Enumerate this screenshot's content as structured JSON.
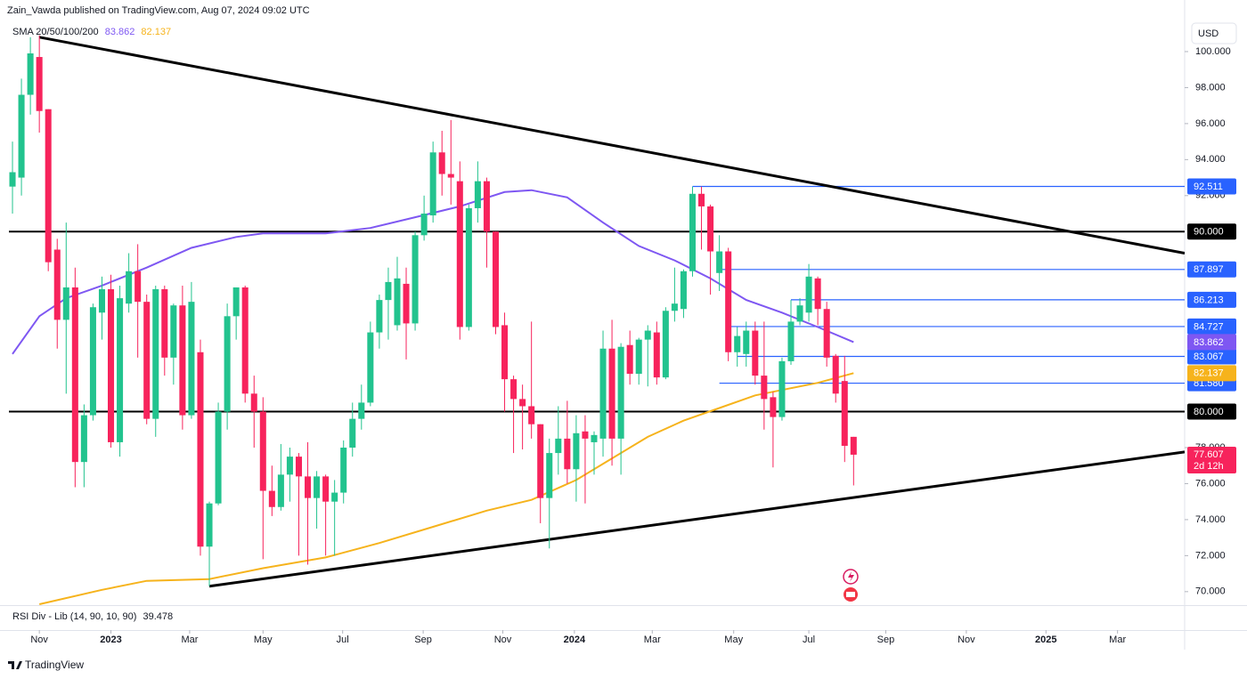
{
  "header": "Zain_Vawda published on TradingView.com, Aug 07, 2024 09:02 UTC",
  "currency": "USD",
  "footer": "TradingView",
  "indicator_legend": "SMA 20/50/100/200",
  "rsi_legend": {
    "name": "RSI Div - Lib (14, 90, 10, 90)",
    "value": 39.478
  },
  "chart_data": {
    "type": "candlestick",
    "up_color": "#22c38e",
    "down_color": "#f7235c",
    "open": [
      92.5,
      93,
      97.6,
      99.7,
      96.8,
      89,
      85.1,
      86.9,
      77.2,
      79.8,
      85.5,
      86.8,
      78.3,
      86,
      87.8,
      86.1,
      79.6,
      86.8,
      83,
      85.9,
      79.8,
      83.3,
      72.5,
      74.9,
      80,
      85.3,
      86.9,
      81,
      80,
      75.6,
      74.7,
      76.5,
      77.5,
      76.4,
      75.2,
      76.4,
      75,
      75.5,
      78,
      79.6,
      80.5,
      84.4,
      86.2,
      84.8,
      87.1,
      84.9,
      89.8,
      90.9,
      94.4,
      93.2,
      92.8,
      84.7,
      91.3,
      92.8,
      90,
      84.8,
      81.8,
      80.7,
      80.3,
      79.3,
      75.2,
      77.7,
      78.5,
      76.8,
      78.9,
      78.3,
      78.5,
      83.5,
      78.5,
      83.7,
      82.1,
      84,
      84.4,
      81.9,
      85.6,
      85.7,
      87.8,
      92.1,
      91.4,
      87.7,
      88.9,
      83.3,
      83.2,
      84.5,
      82,
      80.8,
      79.7,
      82.8,
      85,
      85.5,
      87.4,
      85.7,
      83.1,
      81.7,
      78.6
    ],
    "high": [
      95,
      98.5,
      100.8,
      100.9,
      96.8,
      89.6,
      90.5,
      88,
      80.4,
      86,
      87.5,
      87.6,
      87,
      88.8,
      89.3,
      86.5,
      87,
      87,
      86,
      87,
      87.2,
      84,
      75,
      80.5,
      86,
      86.9,
      87,
      82,
      80.8,
      77,
      78.2,
      78,
      77.7,
      78.3,
      76.7,
      76.5,
      76.2,
      78.4,
      80.5,
      81.5,
      85,
      86.5,
      88,
      88.6,
      88,
      90,
      92,
      95,
      95.6,
      96.2,
      93.9,
      91.5,
      93.9,
      93,
      90,
      85.5,
      82,
      81.5,
      85,
      79.3,
      78.5,
      80.3,
      80.6,
      79.8,
      79.8,
      78.9,
      84.5,
      85.1,
      83.8,
      84.5,
      84.1,
      84.8,
      85,
      85.8,
      88,
      87.9,
      92.5,
      92.5,
      91.5,
      89.8,
      89.1,
      84.7,
      85,
      85,
      85,
      81.1,
      83,
      86.2,
      86.3,
      88.2,
      87.5,
      86.1,
      83.2,
      83.1,
      78.6
    ],
    "low": [
      91,
      92,
      96.5,
      95.5,
      87.8,
      83.5,
      81,
      75.8,
      75.8,
      79.5,
      84,
      78,
      77.5,
      85.5,
      83,
      79.3,
      78.6,
      82,
      81.5,
      79,
      79.6,
      72,
      70.3,
      74.8,
      79,
      84,
      80.5,
      78,
      71.8,
      74.2,
      74.5,
      75,
      72,
      71.5,
      73.5,
      72,
      72,
      74.9,
      77.5,
      79,
      80.3,
      83.5,
      84,
      84.5,
      82.9,
      84.5,
      89.5,
      90.5,
      92,
      91.5,
      84,
      84.5,
      90.5,
      88,
      84.3,
      80,
      77.7,
      77.9,
      78.5,
      73.8,
      72.4,
      76.5,
      76,
      75,
      74.9,
      76.5,
      77.5,
      77,
      76.5,
      81.5,
      81.5,
      81.4,
      81.5,
      81.8,
      85,
      85.2,
      87.5,
      89,
      86.5,
      86.7,
      82.8,
      82.5,
      82.5,
      81.5,
      79,
      76.9,
      79.5,
      82.6,
      84.8,
      85,
      84.8,
      82.5,
      80.5,
      77.2,
      75.9
    ],
    "close": [
      93.3,
      97.6,
      99.9,
      96.7,
      88.3,
      85.1,
      86.9,
      77.2,
      79.8,
      85.8,
      86.8,
      78.3,
      86.3,
      87.8,
      86.1,
      79.6,
      86.8,
      83,
      85.9,
      79.8,
      86.1,
      72.5,
      74.9,
      80,
      85.3,
      86.9,
      81,
      80,
      75.6,
      74.7,
      76.5,
      77.5,
      76.4,
      75.2,
      76.4,
      75,
      75.5,
      78,
      79.6,
      80.5,
      84.4,
      86.2,
      87.2,
      87.4,
      84.9,
      89.8,
      91,
      94.4,
      93.2,
      93,
      84.7,
      91.3,
      92.8,
      90,
      84.7,
      81.8,
      80.7,
      80.3,
      79.3,
      75.2,
      77.7,
      78.5,
      76.8,
      78.8,
      78.5,
      78.7,
      83.5,
      78.5,
      83.6,
      82.1,
      84,
      84.5,
      81.9,
      85.6,
      86,
      87.8,
      92.1,
      91.4,
      88.9,
      88.9,
      83.3,
      84.2,
      84.5,
      82,
      80.7,
      79.7,
      82.8,
      85,
      85.9,
      87.5,
      85.7,
      83,
      81,
      78.1,
      77.607
    ],
    "countdown": "2d 12h",
    "series": [
      {
        "color": "#7e57f2",
        "x": [
          0,
          3,
          6,
          10,
          15,
          20,
          25,
          28,
          35,
          40,
          45,
          50,
          55,
          58,
          62,
          66,
          70,
          74,
          78,
          82,
          86,
          90,
          94
        ],
        "values": [
          83.2,
          85.3,
          86.3,
          87,
          88,
          89.1,
          89.7,
          89.9,
          89.9,
          90.2,
          90.8,
          91.4,
          92.2,
          92.3,
          91.9,
          90.5,
          89.2,
          88.4,
          87.4,
          86.2,
          85.5,
          84.7,
          83.862
        ]
      },
      {
        "color": "#f6b31c",
        "x": [
          3,
          10,
          15,
          22,
          28,
          35,
          41,
          47,
          53,
          58,
          63,
          67,
          71,
          75,
          79,
          83,
          87,
          90,
          94
        ],
        "values": [
          69.3,
          70.1,
          70.6,
          70.7,
          71.3,
          71.9,
          72.7,
          73.6,
          74.5,
          75.1,
          76.2,
          77.4,
          78.6,
          79.5,
          80.2,
          80.9,
          81.3,
          81.6,
          82.137
        ]
      }
    ],
    "trendlines": [
      {
        "x": [
          3,
          131
        ],
        "y": [
          100.8,
          88.8
        ]
      },
      {
        "x": [
          22,
          131
        ],
        "y": [
          70.3,
          77.76
        ]
      }
    ],
    "levels": [
      {
        "value": 90,
        "label": "90.000",
        "color": "#000000"
      },
      {
        "value": 80,
        "label": "80.000",
        "color": "#000000"
      },
      {
        "value": 92.511,
        "color": "#2962ff",
        "from": 76
      },
      {
        "value": 87.897,
        "color": "#2962ff",
        "from": 79
      },
      {
        "value": 86.213,
        "color": "#2962ff",
        "from": 87
      },
      {
        "value": 84.727,
        "color": "#2962ff",
        "from": 80
      },
      {
        "value": 83.067,
        "color": "#2962ff",
        "from": 81
      },
      {
        "value": 81.58,
        "label": "81.580",
        "color": "#2962ff",
        "from": 79
      }
    ],
    "xlim": [
      -0.4,
      131
    ],
    "xticks": [
      {
        "value": 3,
        "label": "Nov"
      },
      {
        "value": 11,
        "label": "2023"
      },
      {
        "value": 19.8,
        "label": "Mar"
      },
      {
        "value": 28,
        "label": "May"
      },
      {
        "value": 36.9,
        "label": "Jul"
      },
      {
        "value": 45.9,
        "label": "Sep"
      },
      {
        "value": 54.8,
        "label": "Nov"
      },
      {
        "value": 62.8,
        "label": "2024"
      },
      {
        "value": 71.5,
        "label": "Mar"
      },
      {
        "value": 80.6,
        "label": "May"
      },
      {
        "value": 89,
        "label": "Jul"
      },
      {
        "value": 97.6,
        "label": "Sep"
      },
      {
        "value": 106.6,
        "label": "Nov"
      },
      {
        "value": 115.5,
        "label": "2025"
      },
      {
        "value": 123.5,
        "label": "Mar"
      }
    ],
    "ylim": [
      69.25,
      101.63
    ],
    "yticks": [
      {
        "value": 100,
        "label": "100.000"
      },
      {
        "value": 98,
        "label": "98.000"
      },
      {
        "value": 96,
        "label": "96.000"
      },
      {
        "value": 94,
        "label": "94.000"
      },
      {
        "value": 92,
        "label": "92.000"
      },
      {
        "value": 78,
        "label": "78.000"
      },
      {
        "value": 76,
        "label": "76.000"
      },
      {
        "value": 74,
        "label": "74.000"
      },
      {
        "value": 72,
        "label": "72.000"
      },
      {
        "value": 70,
        "label": "70.000"
      }
    ]
  }
}
